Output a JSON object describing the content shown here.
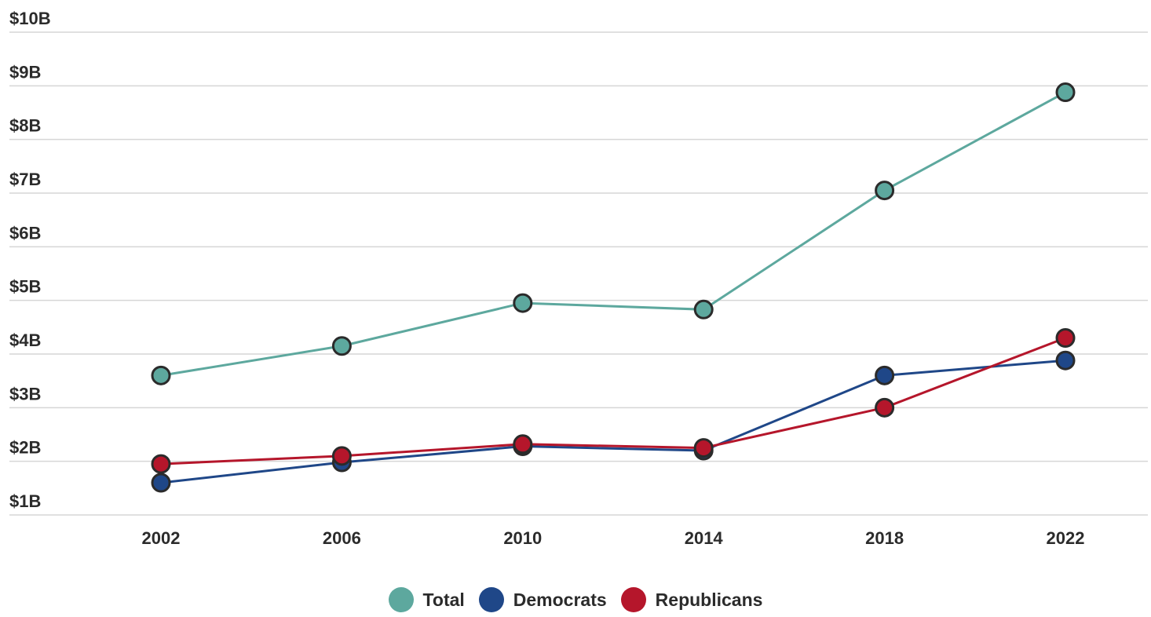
{
  "chart_data": {
    "type": "line",
    "categories": [
      "2002",
      "2006",
      "2010",
      "2014",
      "2018",
      "2022"
    ],
    "y_tick_labels": [
      "$1B",
      "$2B",
      "$3B",
      "$4B",
      "$5B",
      "$6B",
      "$7B",
      "$8B",
      "$9B",
      "$10B"
    ],
    "ylim": [
      1,
      10
    ],
    "grid": true,
    "legend_position": "bottom-center",
    "series": [
      {
        "name": "Total",
        "color": "#5da89e",
        "values": [
          3.6,
          4.15,
          4.95,
          4.83,
          7.05,
          8.88
        ]
      },
      {
        "name": "Democrats",
        "color": "#1f4788",
        "values": [
          1.6,
          1.98,
          2.28,
          2.2,
          3.6,
          3.88
        ]
      },
      {
        "name": "Republicans",
        "color": "#b5162b",
        "values": [
          1.95,
          2.1,
          2.32,
          2.25,
          3.0,
          4.3
        ]
      }
    ]
  },
  "legend": [
    {
      "label": "Total",
      "color": "#5da89e"
    },
    {
      "label": "Democrats",
      "color": "#1f4788"
    },
    {
      "label": "Republicans",
      "color": "#b5162b"
    }
  ]
}
